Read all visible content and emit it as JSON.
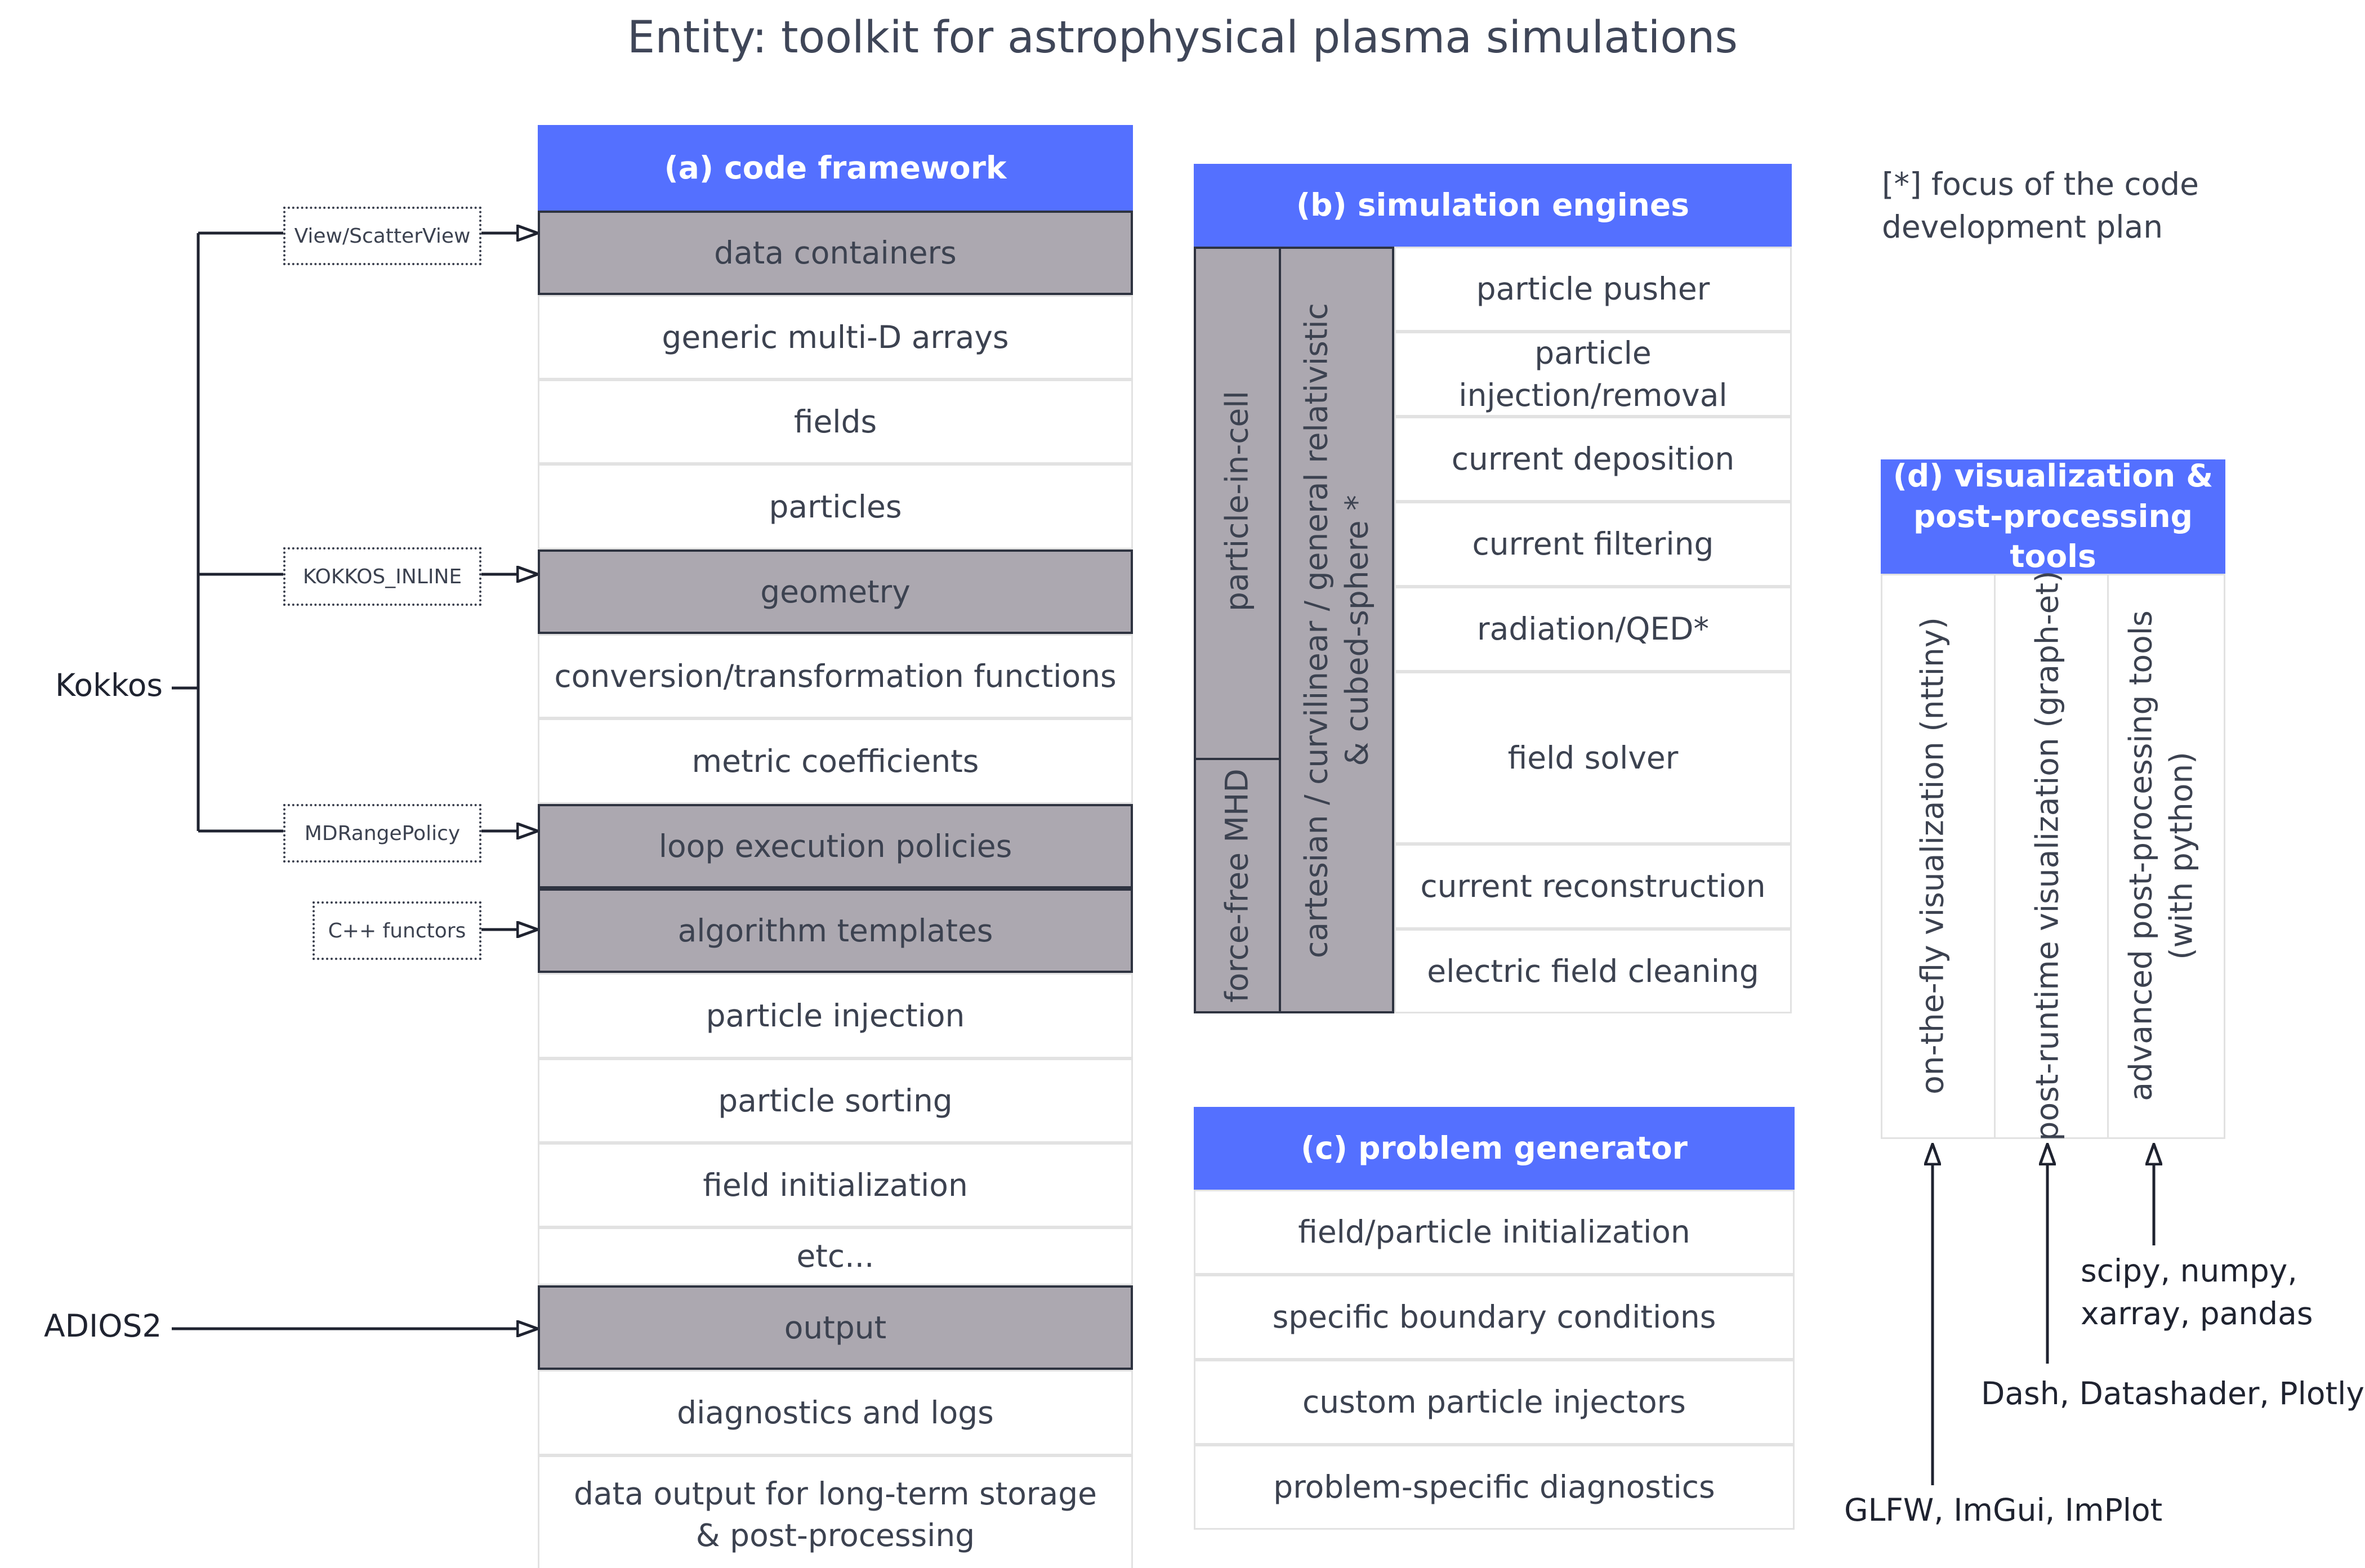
{
  "title": "Entity: toolkit for astrophysical plasma simulations",
  "note": [
    "[*] focus of the code",
    "development plan"
  ],
  "framework": {
    "header": "(a) code framework",
    "rows": [
      {
        "text": "data containers",
        "kind": "category"
      },
      {
        "text": "generic multi-D arrays",
        "kind": "item"
      },
      {
        "text": "fields",
        "kind": "item"
      },
      {
        "text": "particles",
        "kind": "item"
      },
      {
        "text": "geometry",
        "kind": "category"
      },
      {
        "text": "conversion/transformation functions",
        "kind": "item"
      },
      {
        "text": "metric coefficients",
        "kind": "item"
      },
      {
        "text": "loop execution policies",
        "kind": "category"
      },
      {
        "text": "algorithm templates",
        "kind": "category"
      },
      {
        "text": "particle injection",
        "kind": "item"
      },
      {
        "text": "particle sorting",
        "kind": "item"
      },
      {
        "text": "field initialization",
        "kind": "item"
      },
      {
        "text": "etc...",
        "kind": "item"
      },
      {
        "text": "output",
        "kind": "category"
      },
      {
        "text": "diagnostics and logs",
        "kind": "item"
      },
      {
        "text": "data output for long-term storage & post-processing",
        "kind": "item"
      }
    ]
  },
  "engines": {
    "header": "(b) simulation engines",
    "side_labels": [
      "particle-in-cell",
      "force-free MHD"
    ],
    "geometry_label": [
      "cartesian / curvilinear / general relativistic",
      "& cubed-sphere *"
    ],
    "rows": [
      "particle pusher",
      "particle injection/removal",
      "current deposition",
      "current filtering",
      "radiation/QED*",
      "field solver",
      "current reconstruction",
      "electric field cleaning"
    ]
  },
  "problem_generator": {
    "header": "(c) problem generator",
    "rows": [
      "field/particle initialization",
      "specific boundary conditions",
      "custom particle injectors",
      "problem-specific diagnostics"
    ]
  },
  "visualization": {
    "header": [
      "(d) visualization &",
      "post-processing tools"
    ],
    "columns": [
      {
        "lines": [
          "on-the-fly visualization (nttiny)"
        ]
      },
      {
        "lines": [
          "post-runtime visualization (graph-et)"
        ]
      },
      {
        "lines": [
          "advanced post-processing tools",
          "(with python)"
        ]
      }
    ],
    "deps": [
      {
        "lines": [
          "GLFW, ImGui, ImPlot"
        ]
      },
      {
        "lines": [
          "Dash, Datashader, Plotly"
        ]
      },
      {
        "lines": [
          "scipy, numpy,",
          "xarray, pandas"
        ]
      }
    ]
  },
  "libraries": {
    "kokkos": "Kokkos",
    "adios": "ADIOS2",
    "tags": [
      "View/ScatterView",
      "KOKKOS_INLINE",
      "MDRangePolicy",
      "C++ functors"
    ]
  }
}
